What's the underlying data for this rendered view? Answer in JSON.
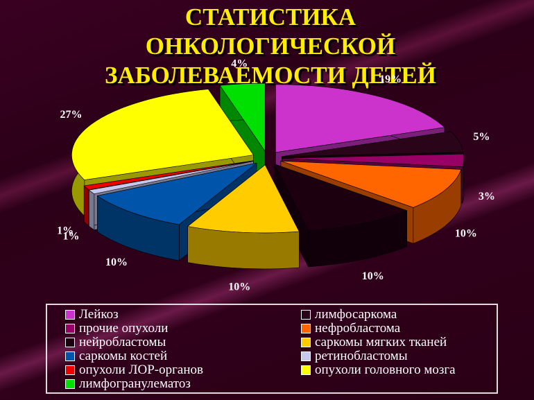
{
  "chart_data": {
    "type": "pie",
    "title": "СТАТИСТИКА ОНКОЛОГИЧЕСКОЙ ЗАБОЛЕВАЕМОСТИ ДЕТЕЙ",
    "categories": [
      "Лейкоз",
      "лимфосаркома",
      "прочие опухоли",
      "нефробластома",
      "нейробластомы",
      "саркомы мягких тканей",
      "саркомы костей",
      "ретинобластомы",
      "опухоли ЛОР-органов",
      "опухоли головного мозга",
      "лимфогранулематоз"
    ],
    "values": [
      19,
      5,
      3,
      10,
      10,
      10,
      10,
      1,
      1,
      27,
      4
    ],
    "value_labels": [
      "19%",
      "5%",
      "3%",
      "10%",
      "10%",
      "10%",
      "10%",
      "1%",
      "1%",
      "27%",
      "4%"
    ],
    "colors": [
      "#cc33cc",
      "#2a0418",
      "#990066",
      "#ff6600",
      "#1c0010",
      "#ffcc00",
      "#0055aa",
      "#c8c8ee",
      "#ee0000",
      "#ffff00",
      "#00e000"
    ],
    "legend": "bottom"
  }
}
